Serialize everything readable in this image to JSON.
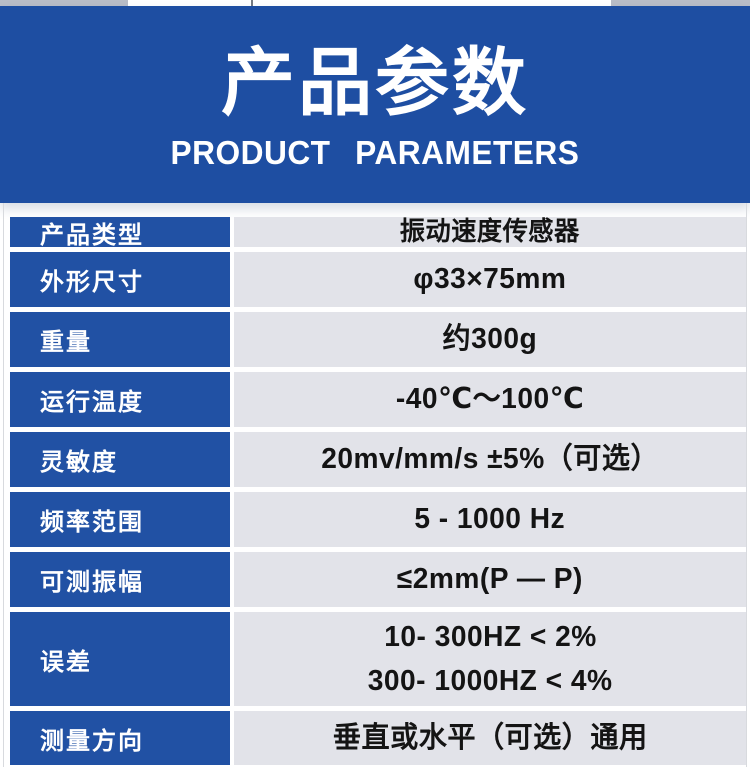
{
  "banner": {
    "title": "产品参数",
    "subtitle": "PRODUCT PARAMETERS"
  },
  "table": {
    "rows": [
      {
        "label": "产品类型",
        "values": [
          "振动速度传感器"
        ]
      },
      {
        "label": "外形尺寸",
        "values": [
          "φ33×75mm"
        ]
      },
      {
        "label": "重量",
        "values": [
          "约300g"
        ]
      },
      {
        "label": "运行温度",
        "values": [
          "-40℃～100℃"
        ]
      },
      {
        "label": "灵敏度",
        "values": [
          "20mv/mm/s ±5%（可选）"
        ]
      },
      {
        "label": "频率范围",
        "values": [
          "5 - 1000 Hz"
        ]
      },
      {
        "label": "可测振幅",
        "values": [
          "≤2mm(P — P)"
        ]
      },
      {
        "label": "误差",
        "values": [
          "10- 300HZ < 2%",
          "300- 1000HZ < 4%"
        ]
      },
      {
        "label": "测量方向",
        "values": [
          "垂直或水平（可选）通用"
        ]
      }
    ]
  },
  "colors": {
    "banner-blue": "#1e4ea2",
    "label-blue": "#2151a4",
    "value-bg": "#e2e3e9",
    "value-text": "#141414",
    "strip-gray": "#b9bdc7",
    "strip-divider": "#757a82",
    "edge-line": "#d8dade"
  }
}
